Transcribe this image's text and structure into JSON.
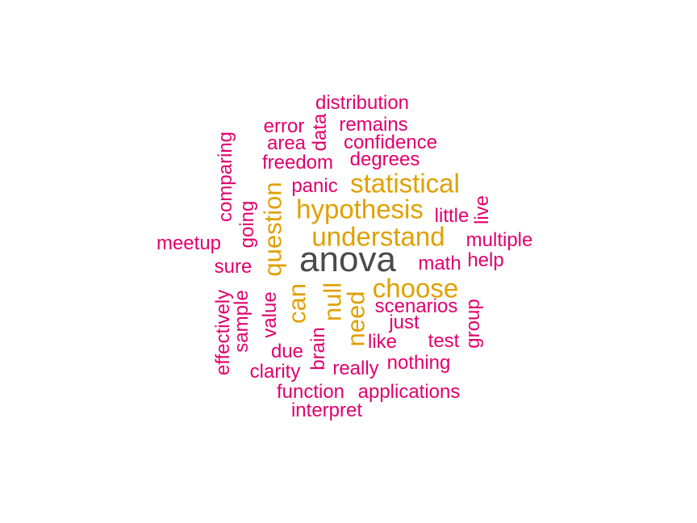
{
  "colors": {
    "top": "#4a4a4a",
    "mid": "#e0a000",
    "low": "#e0006e"
  },
  "words": {
    "anova": "anova",
    "statistical": "statistical",
    "hypothesis": "hypothesis",
    "understand": "understand",
    "choose": "choose",
    "question": "question",
    "can": "can",
    "null": "null",
    "need": "need",
    "distribution": "distribution",
    "error": "error",
    "remains": "remains",
    "area": "area",
    "data": "data",
    "confidence": "confidence",
    "freedom": "freedom",
    "degrees": "degrees",
    "comparing": "comparing",
    "panic": "panic",
    "going": "going",
    "little": "little",
    "live": "live",
    "meetup": "meetup",
    "multiple": "multiple",
    "sure": "sure",
    "math": "math",
    "help": "help",
    "effectively": "effectively",
    "sample": "sample",
    "value": "value",
    "scenarios": "scenarios",
    "group": "group",
    "just": "just",
    "brain": "brain",
    "like": "like",
    "test": "test",
    "due": "due",
    "clarity": "clarity",
    "really": "really",
    "nothing": "nothing",
    "function": "function",
    "applications": "applications",
    "interpret": "interpret"
  }
}
